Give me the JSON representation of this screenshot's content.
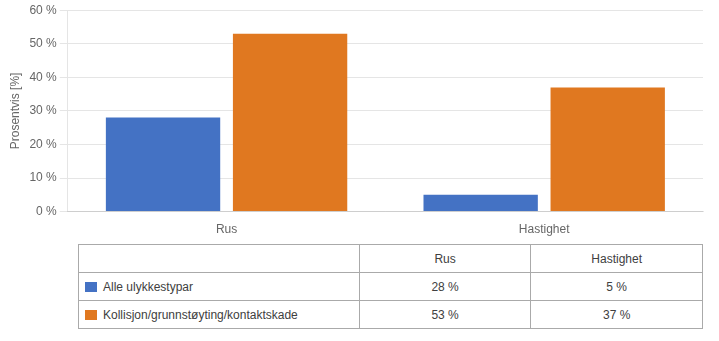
{
  "chart_data": {
    "type": "bar",
    "categories": [
      "Rus",
      "Hastighet"
    ],
    "series": [
      {
        "name": "Alle ulykkestypar",
        "color": "#4472C4",
        "values": [
          28,
          5
        ],
        "value_labels": [
          "28 %",
          "5 %"
        ]
      },
      {
        "name": "Kollisjon/grunnstøyting/kontaktskade",
        "color": "#E07820",
        "values": [
          53,
          37
        ],
        "value_labels": [
          "53 %",
          "37 %"
        ]
      }
    ],
    "ylabel": "Prosentvis [%]",
    "ylim": [
      0,
      60
    ],
    "yticks": [
      {
        "value": 0,
        "label": "0 %"
      },
      {
        "value": 10,
        "label": "10 %"
      },
      {
        "value": 20,
        "label": "20 %"
      },
      {
        "value": 30,
        "label": "30 %"
      },
      {
        "value": 40,
        "label": "40 %"
      },
      {
        "value": 50,
        "label": "50 %"
      },
      {
        "value": 60,
        "label": "60 %"
      }
    ],
    "grid": true
  }
}
